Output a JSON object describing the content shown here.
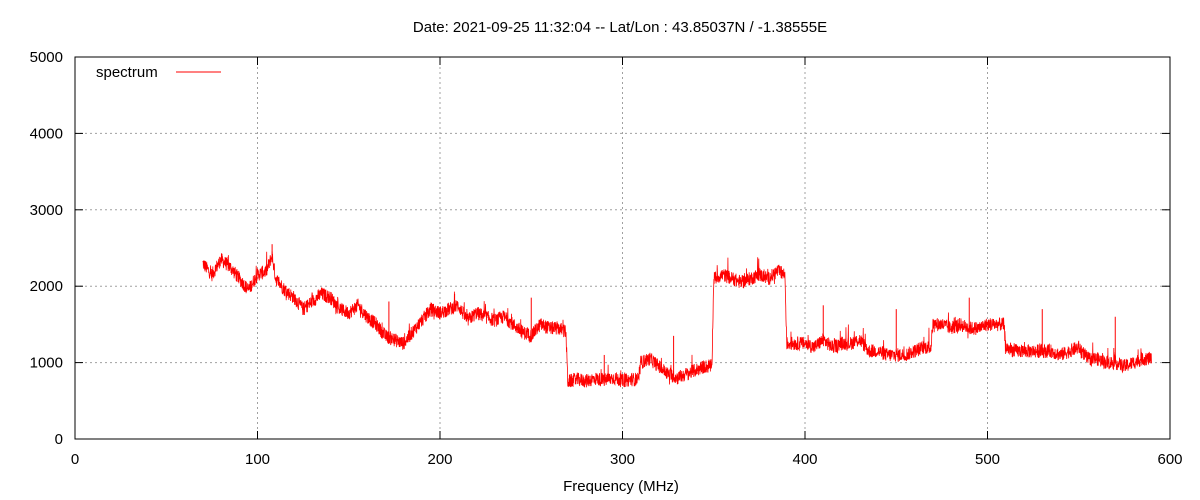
{
  "chart_data": {
    "type": "line",
    "title": "Date: 2021-09-25 11:32:04  --  Lat/Lon : 43.85037N / -1.38555E",
    "xlabel": "Frequency (MHz)",
    "ylabel": "",
    "xlim": [
      0,
      600
    ],
    "ylim": [
      0,
      5000
    ],
    "xticks": [
      0,
      100,
      200,
      300,
      400,
      500,
      600
    ],
    "yticks": [
      0,
      1000,
      2000,
      3000,
      4000,
      5000
    ],
    "grid": true,
    "legend_position": "top-left",
    "series": [
      {
        "name": "spectrum",
        "color": "#ff0000",
        "x": [
          70,
          75,
          80,
          85,
          90,
          95,
          100,
          105,
          108,
          110,
          115,
          120,
          125,
          130,
          135,
          140,
          145,
          150,
          155,
          160,
          165,
          170,
          175,
          180,
          185,
          190,
          195,
          200,
          205,
          210,
          215,
          220,
          225,
          230,
          235,
          240,
          245,
          250,
          255,
          260,
          265,
          269,
          270,
          275,
          280,
          285,
          290,
          295,
          300,
          305,
          309,
          310,
          315,
          320,
          325,
          330,
          335,
          340,
          345,
          349,
          350,
          355,
          360,
          365,
          370,
          375,
          380,
          385,
          389,
          390,
          395,
          400,
          405,
          410,
          415,
          420,
          425,
          430,
          435,
          440,
          445,
          450,
          455,
          460,
          465,
          469,
          470,
          475,
          480,
          485,
          490,
          495,
          500,
          505,
          509,
          510,
          515,
          520,
          525,
          530,
          535,
          540,
          545,
          550,
          555,
          560,
          565,
          570,
          575,
          580,
          585,
          590
        ],
        "values": [
          2300,
          2150,
          2350,
          2250,
          2100,
          1950,
          2150,
          2200,
          2400,
          2100,
          1950,
          1850,
          1700,
          1800,
          1900,
          1850,
          1700,
          1650,
          1750,
          1600,
          1500,
          1350,
          1300,
          1250,
          1400,
          1550,
          1700,
          1650,
          1700,
          1750,
          1550,
          1650,
          1600,
          1550,
          1600,
          1500,
          1400,
          1350,
          1500,
          1450,
          1450,
          1400,
          750,
          780,
          760,
          790,
          770,
          800,
          760,
          780,
          780,
          1000,
          1050,
          950,
          850,
          800,
          850,
          900,
          950,
          950,
          2100,
          2150,
          2100,
          2050,
          2100,
          2150,
          2100,
          2200,
          2150,
          1250,
          1250,
          1250,
          1200,
          1300,
          1200,
          1250,
          1250,
          1300,
          1150,
          1150,
          1100,
          1100,
          1100,
          1150,
          1200,
          1200,
          1500,
          1500,
          1450,
          1500,
          1450,
          1450,
          1500,
          1500,
          1500,
          1200,
          1150,
          1150,
          1150,
          1150,
          1150,
          1100,
          1150,
          1200,
          1050,
          1050,
          1000,
          1000,
          950,
          1000,
          1050,
          1050
        ],
        "spikes": [
          [
            108,
            2550
          ],
          [
            172,
            1800
          ],
          [
            208,
            1900
          ],
          [
            250,
            1850
          ],
          [
            290,
            1100
          ],
          [
            328,
            1350
          ],
          [
            410,
            1750
          ],
          [
            450,
            1700
          ],
          [
            490,
            1850
          ],
          [
            530,
            1700
          ],
          [
            570,
            1600
          ]
        ]
      }
    ]
  }
}
